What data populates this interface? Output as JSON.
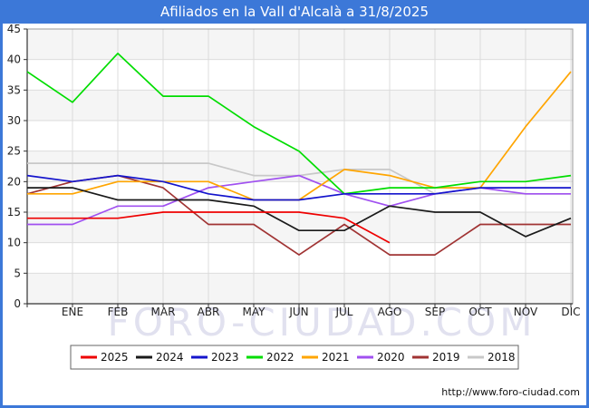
{
  "title": "Afiliados en la Vall d'Alcalà a 31/8/2025",
  "watermark": "FORO-CIUDAD.COM",
  "footer_url": "http://www.foro-ciudad.com",
  "frame_color": "#3c78d8",
  "chart_data": {
    "type": "line",
    "title": "Afiliados en la Vall d'Alcalà a 31/8/2025",
    "xlabel": "",
    "ylabel": "",
    "months": [
      "ENE",
      "FEB",
      "MAR",
      "ABR",
      "MAY",
      "JUN",
      "JUL",
      "AGO",
      "SEP",
      "OCT",
      "NOV",
      "DIC"
    ],
    "ylim": [
      0,
      45
    ],
    "ytick_step": 5,
    "grid": true,
    "legend_position": "bottom",
    "values_start_at_left_axis": true,
    "series": [
      {
        "name": "2025",
        "color": "#ee0000",
        "values": [
          14,
          14,
          14,
          15,
          15,
          15,
          15,
          14,
          10
        ]
      },
      {
        "name": "2024",
        "color": "#1a1a1a",
        "values": [
          19,
          19,
          17,
          17,
          17,
          16,
          12,
          12,
          16,
          15,
          15,
          11,
          14
        ]
      },
      {
        "name": "2023",
        "color": "#1414cc",
        "values": [
          21,
          20,
          21,
          20,
          18,
          17,
          17,
          18,
          18,
          18,
          19,
          19,
          19
        ]
      },
      {
        "name": "2022",
        "color": "#00dd00",
        "values": [
          38,
          33,
          41,
          34,
          34,
          29,
          25,
          18,
          19,
          19,
          20,
          20,
          21
        ]
      },
      {
        "name": "2021",
        "color": "#ffa500",
        "values": [
          18,
          18,
          20,
          20,
          20,
          17,
          17,
          22,
          21,
          19,
          19,
          29,
          38
        ]
      },
      {
        "name": "2020",
        "color": "#a050f0",
        "values": [
          13,
          13,
          16,
          16,
          19,
          20,
          21,
          18,
          16,
          18,
          19,
          18,
          18
        ]
      },
      {
        "name": "2019",
        "color": "#a03333",
        "values": [
          18,
          20,
          21,
          19,
          13,
          13,
          8,
          13,
          8,
          8,
          13,
          13,
          13
        ]
      },
      {
        "name": "2018",
        "color": "#c8c8c8",
        "values": [
          23,
          23,
          23,
          23,
          23,
          21,
          21,
          22,
          22,
          18,
          18,
          18,
          18
        ]
      }
    ]
  }
}
